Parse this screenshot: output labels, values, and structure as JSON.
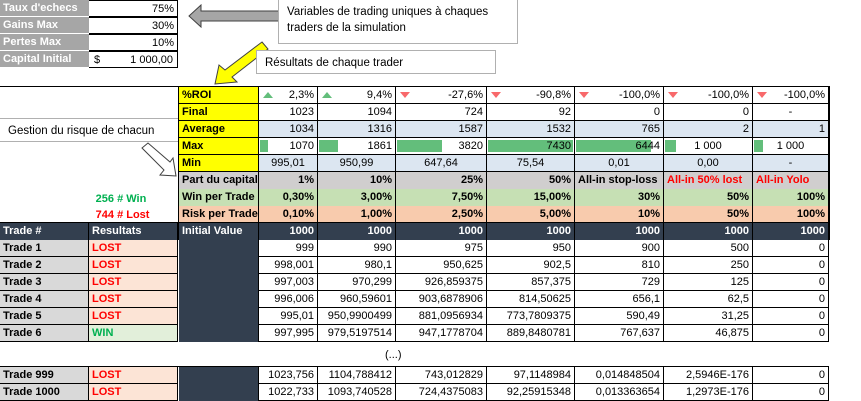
{
  "params": [
    {
      "label": "Taux d'echecs",
      "value": "75%"
    },
    {
      "label": "Gains Max",
      "value": "30%"
    },
    {
      "label": "Pertes Max",
      "value": "10%"
    },
    {
      "label": "Capital Initial",
      "currency": "$",
      "value": "1 000,00"
    }
  ],
  "annotations": {
    "variables": "Variables de trading uniques à chaques traders de la simulation",
    "results": "Résultats de chaque trader",
    "risk": "Gestion du risque de chacun",
    "ellipsis": "(...)"
  },
  "counts": {
    "win_count": "256",
    "win_label": "# Win",
    "lost_count": "744",
    "lost_label": "# Lost"
  },
  "colors": {
    "yellow": "#ffff00",
    "header_dark": "#333f4f",
    "positive": "#63be7b",
    "negative": "#f8696b",
    "lost_text": "#ff0000",
    "win_text": "#00b050"
  },
  "summary": {
    "labels": {
      "roi": "%ROI",
      "final": "Final",
      "average": "Average",
      "max": "Max",
      "min": "Min"
    },
    "roi": [
      {
        "value": "2,3%",
        "trend": "up"
      },
      {
        "value": "9,4%",
        "trend": "up"
      },
      {
        "value": "-27,6%",
        "trend": "down"
      },
      {
        "value": "-90,8%",
        "trend": "down"
      },
      {
        "value": "-100,0%",
        "trend": "down"
      },
      {
        "value": "-100,0%",
        "trend": "down"
      },
      {
        "value": "-100,0%",
        "trend": "down"
      }
    ],
    "final": [
      "1023",
      "1094",
      "724",
      "92",
      "0",
      "0",
      "-"
    ],
    "average": [
      "1034",
      "1316",
      "1587",
      "1532",
      "765",
      "2",
      "1"
    ],
    "max": [
      {
        "value": "1070",
        "bar_pct": 14
      },
      {
        "value": "1861",
        "bar_pct": 25
      },
      {
        "value": "3820",
        "bar_pct": 51
      },
      {
        "value": "7430",
        "bar_pct": 100
      },
      {
        "value": "6444",
        "bar_pct": 87
      },
      {
        "value": "1 000",
        "bar_pct": 13
      },
      {
        "value": "1 000",
        "bar_pct": 13
      }
    ],
    "min": [
      "995,01",
      "950,99",
      "647,64",
      "75,54",
      "0,01",
      "0,00",
      "-"
    ]
  },
  "strategy": {
    "labels": {
      "part": "Part du capital",
      "win": "Win per Trade",
      "risk": "Risk per Trade"
    },
    "part": [
      "1%",
      "10%",
      "25%",
      "50%",
      "All-in stop-loss",
      "All-in 50% lost",
      "All-in Yolo"
    ],
    "win": [
      "0,30%",
      "3,00%",
      "7,50%",
      "15,00%",
      "30%",
      "50%",
      "100%"
    ],
    "risk": [
      "0,10%",
      "1,00%",
      "2,50%",
      "5,00%",
      "10%",
      "50%",
      "100%"
    ]
  },
  "trades": {
    "headers": {
      "trade": "Trade #",
      "result": "Resultats",
      "initial": "Initial Value"
    },
    "initial_values": [
      "1000",
      "1000",
      "1000",
      "1000",
      "1000",
      "1000",
      "1000"
    ],
    "rows": [
      {
        "trade": "Trade 1",
        "result": "LOST",
        "values": [
          "999",
          "990",
          "975",
          "950",
          "900",
          "500",
          "0"
        ]
      },
      {
        "trade": "Trade 2",
        "result": "LOST",
        "values": [
          "998,001",
          "980,1",
          "950,625",
          "902,5",
          "810",
          "250",
          "0"
        ]
      },
      {
        "trade": "Trade 3",
        "result": "LOST",
        "values": [
          "997,003",
          "970,299",
          "926,859375",
          "857,375",
          "729",
          "125",
          "0"
        ]
      },
      {
        "trade": "Trade 4",
        "result": "LOST",
        "values": [
          "996,006",
          "960,59601",
          "903,6878906",
          "814,50625",
          "656,1",
          "62,5",
          "0"
        ]
      },
      {
        "trade": "Trade 5",
        "result": "LOST",
        "values": [
          "995,01",
          "950,9900499",
          "881,0956934",
          "773,7809375",
          "590,49",
          "31,25",
          "0"
        ]
      },
      {
        "trade": "Trade 6",
        "result": "WIN",
        "values": [
          "997,995",
          "979,5197514",
          "947,1778704",
          "889,8480781",
          "767,637",
          "46,875",
          "0"
        ]
      }
    ],
    "tail_rows": [
      {
        "trade": "Trade 999",
        "result": "LOST",
        "values": [
          "1023,756",
          "1104,788412",
          "743,012829",
          "97,1148984",
          "0,014848504",
          "2,5946E-176",
          "0"
        ]
      },
      {
        "trade": "Trade 1000",
        "result": "LOST",
        "values": [
          "1022,733",
          "1093,740528",
          "724,4375083",
          "92,25915348",
          "0,013363654",
          "1,2973E-176",
          "0"
        ]
      }
    ]
  }
}
